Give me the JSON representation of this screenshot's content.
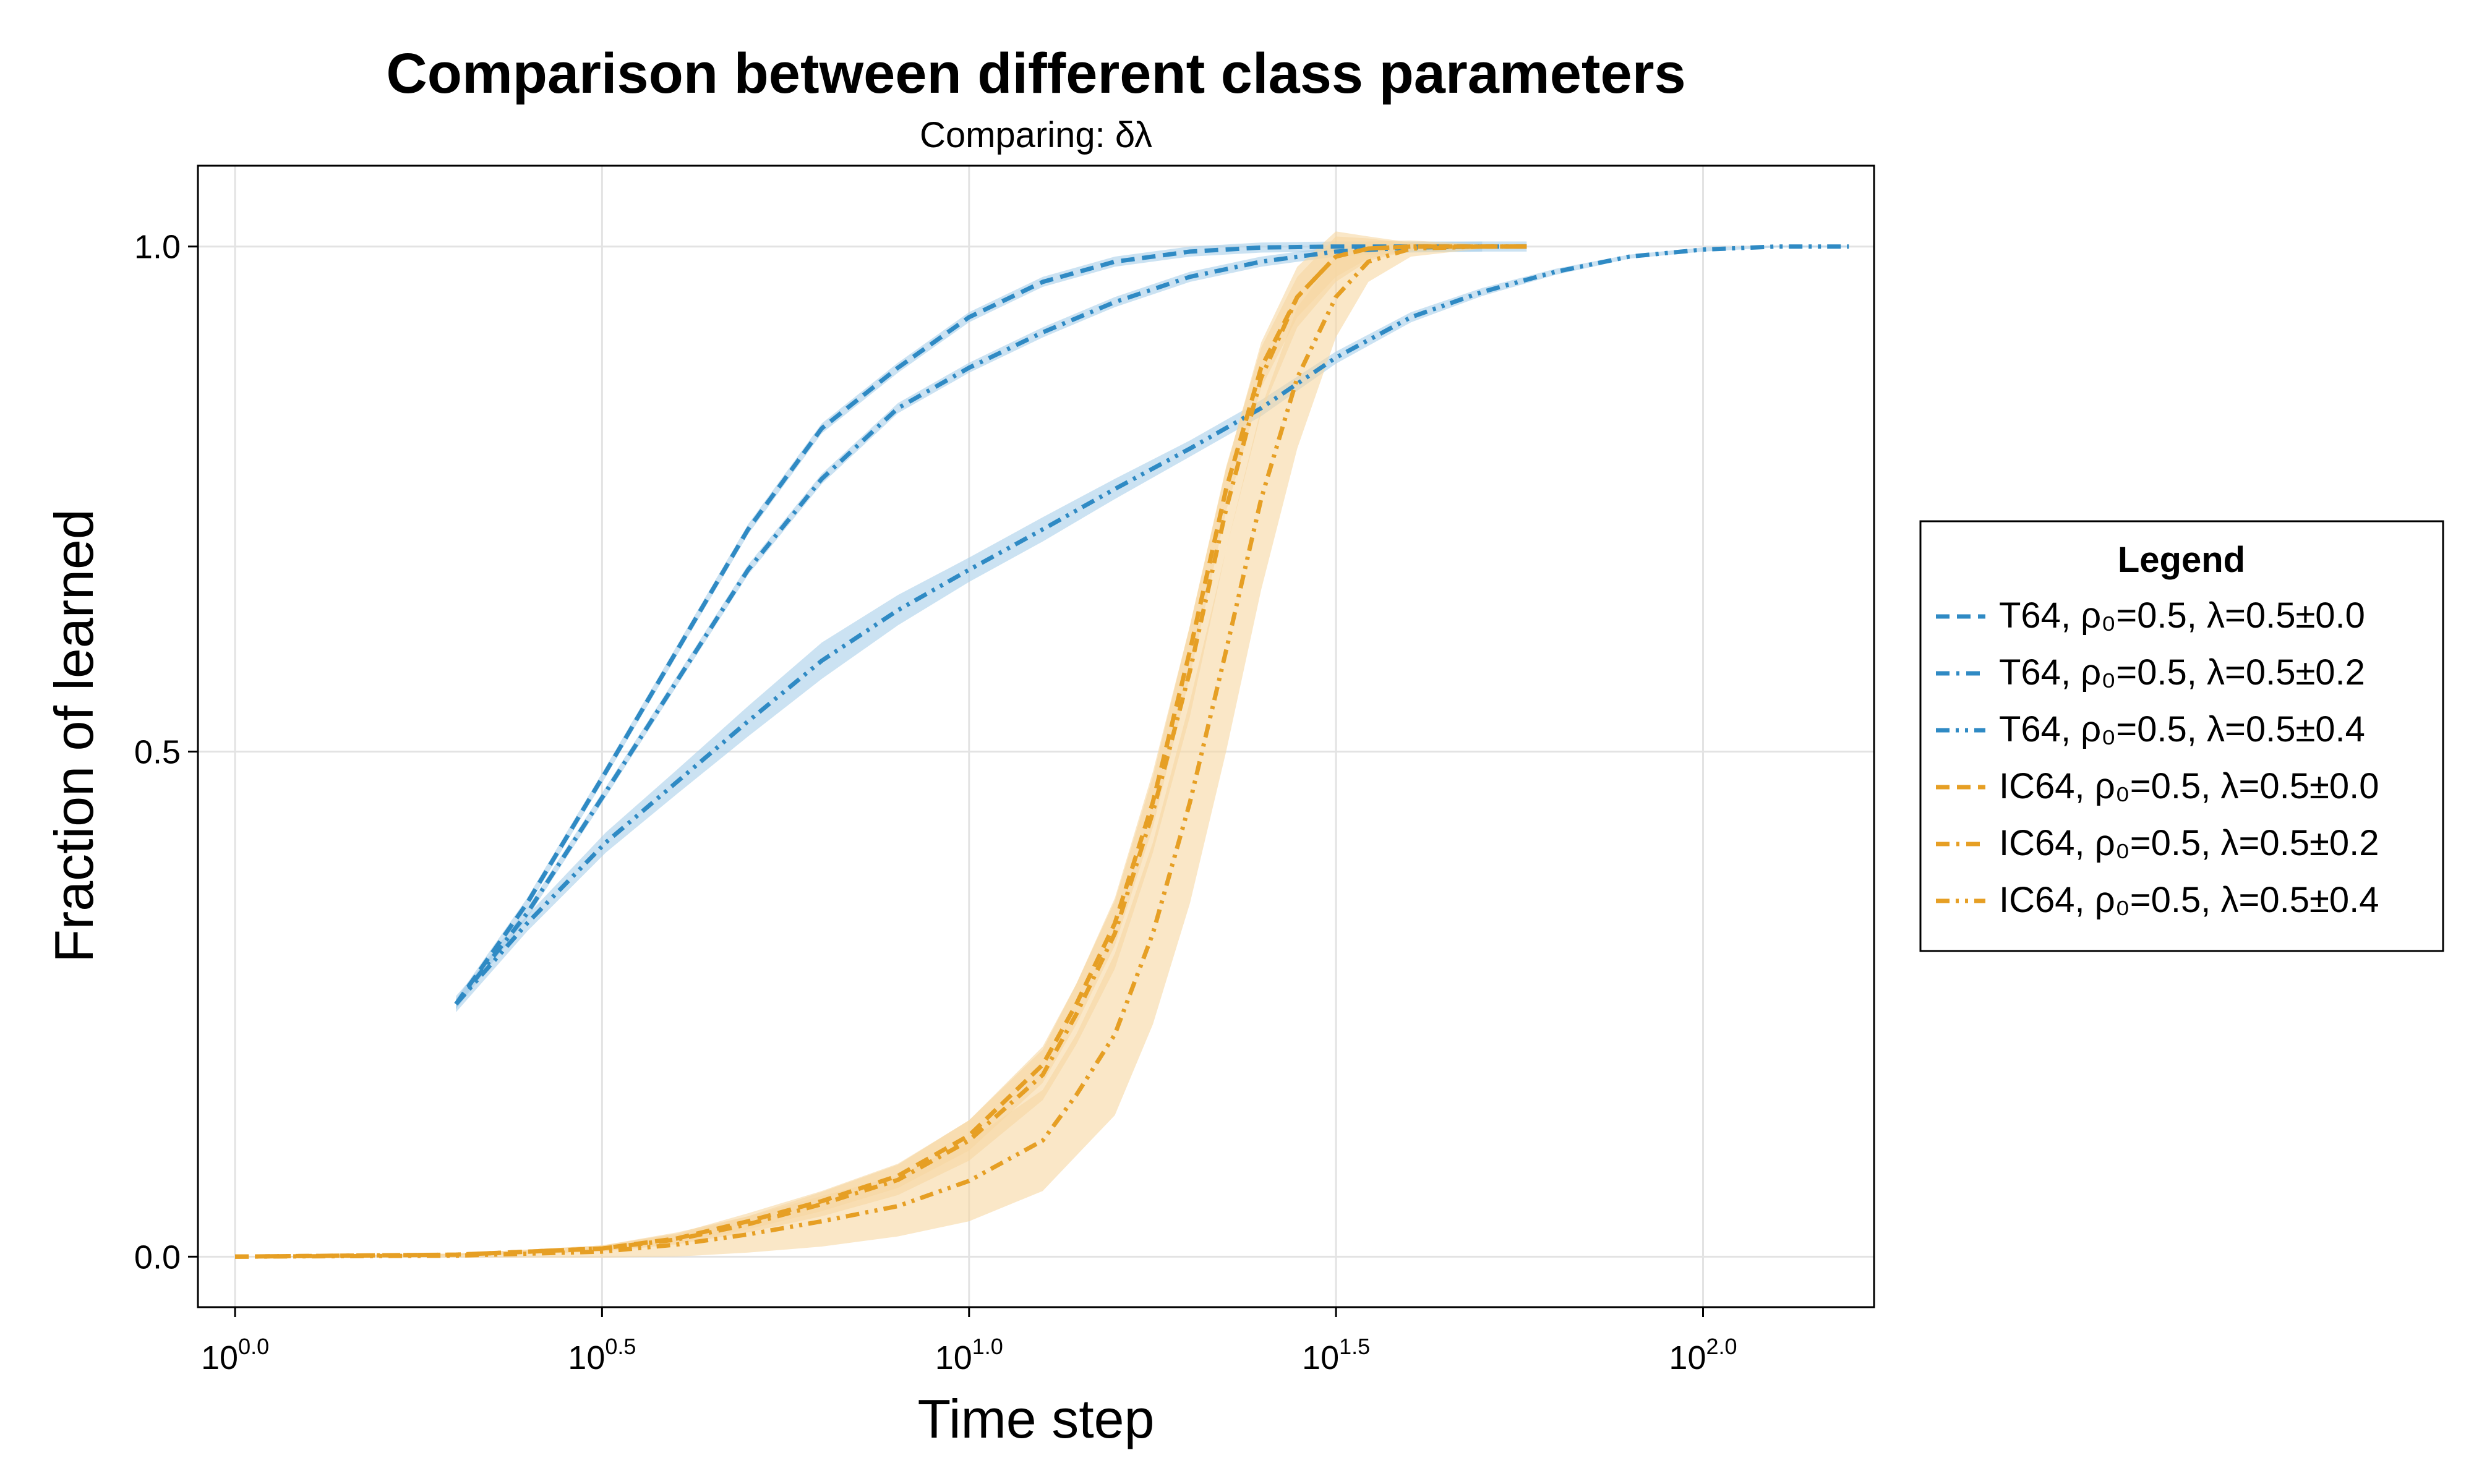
{
  "chart_data": {
    "type": "line",
    "title": "Comparison between different class parameters",
    "subtitle": "Comparing: δλ",
    "xlabel": "Time step",
    "ylabel": "Fraction of learned",
    "x_scale": "log10",
    "xlim": [
      0.89,
      171
    ],
    "ylim": [
      -0.05,
      1.08
    ],
    "x_ticks": [
      1,
      3.162,
      10,
      31.62,
      100
    ],
    "x_tick_labels": [
      {
        "base": "10",
        "exp": "0.0"
      },
      {
        "base": "10",
        "exp": "0.5"
      },
      {
        "base": "10",
        "exp": "1.0"
      },
      {
        "base": "10",
        "exp": "1.5"
      },
      {
        "base": "10",
        "exp": "2.0"
      }
    ],
    "y_ticks": [
      0.0,
      0.5,
      1.0
    ],
    "y_tick_labels": [
      "0.0",
      "0.5",
      "1.0"
    ],
    "grid": true,
    "legend": {
      "title": "Legend",
      "placement": "right"
    },
    "colors": {
      "T64": "#2f8ac4",
      "IC64": "#e69f24",
      "T64_band": "#a8cfe9",
      "IC64_band": "#f7d7a2"
    },
    "series": [
      {
        "name": "T64, ρ₀=0.5, λ=0.5±0.0",
        "group": "T64",
        "dash": "dash",
        "x": [
          2,
          2.5,
          3.2,
          4,
          5,
          6.3,
          8,
          10,
          12.6,
          15.8,
          20,
          25,
          31.6,
          40,
          50
        ],
        "y": [
          0.25,
          0.35,
          0.48,
          0.6,
          0.72,
          0.82,
          0.88,
          0.93,
          0.965,
          0.985,
          0.995,
          0.999,
          1.0,
          1.0,
          1.0
        ],
        "band": 0.005
      },
      {
        "name": "T64, ρ₀=0.5, λ=0.5±0.2",
        "group": "T64",
        "dash": "dashdot",
        "x": [
          2,
          2.5,
          3.2,
          4,
          5,
          6.3,
          8,
          10,
          12.6,
          15.8,
          20,
          25,
          31.6,
          40,
          50,
          57.5
        ],
        "y": [
          0.25,
          0.34,
          0.46,
          0.57,
          0.68,
          0.77,
          0.84,
          0.88,
          0.915,
          0.945,
          0.97,
          0.985,
          0.995,
          0.999,
          1.0,
          1.0
        ],
        "band": 0.005
      },
      {
        "name": "T64, ρ₀=0.5, λ=0.5±0.4",
        "group": "T64",
        "dash": "dashdotdot",
        "x": [
          2,
          2.5,
          3.2,
          4,
          5,
          6.3,
          8,
          10,
          12.6,
          15.8,
          20,
          25,
          31.6,
          40,
          50,
          63,
          79.4,
          100,
          126,
          158
        ],
        "y": [
          0.25,
          0.33,
          0.41,
          0.47,
          0.53,
          0.59,
          0.64,
          0.68,
          0.72,
          0.76,
          0.8,
          0.84,
          0.89,
          0.93,
          0.955,
          0.975,
          0.99,
          0.997,
          1.0,
          1.0
        ],
        "band": [
          0.008,
          0.008,
          0.01,
          0.012,
          0.015,
          0.018,
          0.015,
          0.012,
          0.012,
          0.01,
          0.008,
          0.008,
          0.006,
          0.005,
          0.004,
          0.003,
          0.002,
          0.002,
          0.001,
          0.001
        ]
      },
      {
        "name": "IC64, ρ₀=0.5, λ=0.5±0.0",
        "group": "IC64",
        "dash": "dash",
        "x": [
          1,
          2,
          3.16,
          4,
          5,
          6.3,
          8,
          10,
          12.6,
          14,
          15.8,
          17.8,
          20,
          22.4,
          25,
          28,
          31.6,
          35,
          40,
          50,
          57.5
        ],
        "y": [
          0.0,
          0.002,
          0.008,
          0.018,
          0.035,
          0.055,
          0.08,
          0.12,
          0.19,
          0.25,
          0.33,
          0.45,
          0.6,
          0.76,
          0.88,
          0.95,
          0.99,
          0.998,
          1.0,
          1.0,
          1.0
        ],
        "band": [
          0.0,
          0.001,
          0.003,
          0.005,
          0.008,
          0.01,
          0.012,
          0.015,
          0.018,
          0.02,
          0.022,
          0.025,
          0.025,
          0.022,
          0.02,
          0.02,
          0.02,
          0.01,
          0.003,
          0.001,
          0.0
        ]
      },
      {
        "name": "IC64, ρ₀=0.5, λ=0.5±0.2",
        "group": "IC64",
        "dash": "dashdot",
        "x": [
          1,
          2,
          3.16,
          4,
          5,
          6.3,
          8,
          10,
          12.6,
          14,
          15.8,
          17.8,
          20,
          22.4,
          25,
          28,
          31.6,
          35,
          40,
          50,
          57.5
        ],
        "y": [
          0.0,
          0.002,
          0.008,
          0.017,
          0.032,
          0.052,
          0.076,
          0.115,
          0.18,
          0.24,
          0.32,
          0.44,
          0.58,
          0.74,
          0.87,
          0.95,
          0.99,
          0.998,
          1.0,
          1.0,
          1.0
        ],
        "band": [
          0.0,
          0.001,
          0.003,
          0.005,
          0.008,
          0.012,
          0.015,
          0.02,
          0.025,
          0.03,
          0.035,
          0.04,
          0.045,
          0.04,
          0.035,
          0.03,
          0.025,
          0.012,
          0.004,
          0.001,
          0.0
        ]
      },
      {
        "name": "IC64, ρ₀=0.5, λ=0.5±0.4",
        "group": "IC64",
        "dash": "dashdotdot",
        "x": [
          1,
          2,
          3.16,
          4,
          5,
          6.3,
          8,
          10,
          12.6,
          14,
          15.8,
          17.8,
          20,
          22.4,
          25,
          28,
          31.6,
          35,
          40,
          50,
          57.5
        ],
        "y": [
          0.0,
          0.001,
          0.005,
          0.012,
          0.022,
          0.035,
          0.05,
          0.075,
          0.115,
          0.16,
          0.22,
          0.32,
          0.45,
          0.6,
          0.75,
          0.87,
          0.95,
          0.985,
          0.998,
          1.0,
          1.0
        ],
        "band": [
          0.0,
          0.002,
          0.006,
          0.012,
          0.018,
          0.025,
          0.03,
          0.04,
          0.05,
          0.06,
          0.08,
          0.09,
          0.1,
          0.1,
          0.09,
          0.07,
          0.04,
          0.02,
          0.008,
          0.002,
          0.0
        ]
      }
    ]
  }
}
